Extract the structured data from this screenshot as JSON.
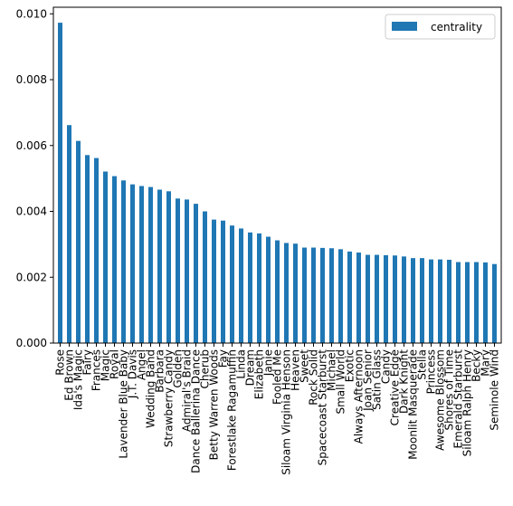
{
  "chart_data": {
    "type": "bar",
    "title": "",
    "xlabel": "",
    "ylabel": "",
    "ylim": [
      0,
      0.0102
    ],
    "yticks": [
      "0.000",
      "0.002",
      "0.004",
      "0.006",
      "0.008",
      "0.010"
    ],
    "grid": false,
    "legend": {
      "placement": "top-right",
      "entries": [
        "centrality"
      ]
    },
    "bar_color": "#1f77b4",
    "categories": [
      "Rose",
      "Ed Brown",
      "Ida's Magic",
      "Fairy",
      "Frances",
      "Magic",
      "Royal",
      "Lavender Blue Baby",
      "J.T. Davis",
      "Angel",
      "Wedding Band",
      "Barbara",
      "Strawberry Candy",
      "Golden",
      "Admiral's Braid",
      "Dance Ballerina Dance",
      "Cherub",
      "Betty Warren Woods",
      "Fay",
      "Forestlake Ragamuffin",
      "Linda",
      "Dream",
      "Elizabeth",
      "Janie",
      "Fooled Me",
      "Siloam Virginia Henson",
      "Heaven",
      "Sweet",
      "Rock Solid",
      "Spacecoast Starburst",
      "Michael",
      "Small World",
      "Exotic",
      "Always Afternoon",
      "Joan Senior",
      "Satin Glass",
      "Candy",
      "Creative Edge",
      "Dark Knight",
      "Moonlit Masquerade",
      "Stella",
      "Princess",
      "Awesome Blossom",
      "Shores of Time",
      "Emerald Starburst",
      "Siloam Ralph Henry",
      "Becky",
      "Mary",
      "Seminole Wind"
    ],
    "series": [
      {
        "name": "centrality",
        "values": [
          0.00973,
          0.00662,
          0.00614,
          0.00571,
          0.00562,
          0.00521,
          0.00507,
          0.00494,
          0.00482,
          0.00477,
          0.00474,
          0.00466,
          0.00461,
          0.00439,
          0.00436,
          0.00423,
          0.004,
          0.00375,
          0.00372,
          0.00357,
          0.00348,
          0.00336,
          0.00333,
          0.00323,
          0.00312,
          0.00304,
          0.00302,
          0.0029,
          0.0029,
          0.00289,
          0.00288,
          0.00285,
          0.00278,
          0.00275,
          0.00268,
          0.00268,
          0.00267,
          0.00266,
          0.00263,
          0.00258,
          0.00258,
          0.00254,
          0.00254,
          0.00253,
          0.00246,
          0.00246,
          0.00246,
          0.00245,
          0.0024
        ]
      }
    ]
  }
}
